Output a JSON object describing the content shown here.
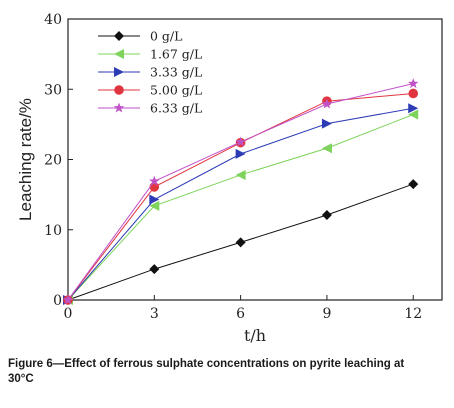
{
  "chart_data": {
    "type": "line",
    "xlabel": "t/h",
    "ylabel": "Leaching rate/%",
    "xlim": [
      0,
      13
    ],
    "ylim": [
      0,
      40
    ],
    "x_ticks": [
      0,
      3,
      6,
      9,
      12
    ],
    "y_ticks": [
      0,
      10,
      20,
      30,
      40
    ],
    "legend_position": "top-left",
    "series": [
      {
        "name": "0 g/L",
        "color": "#111111",
        "marker": "diamond",
        "x": [
          0,
          3,
          6,
          9,
          12
        ],
        "values": [
          0,
          4.4,
          8.2,
          12.1,
          16.5
        ]
      },
      {
        "name": "1.67 g/L",
        "color": "#7dd35b",
        "marker": "triangle-left",
        "x": [
          0,
          3,
          6,
          9,
          12
        ],
        "values": [
          0,
          13.4,
          17.8,
          21.6,
          26.4
        ]
      },
      {
        "name": "3.33 g/L",
        "color": "#2d3bb5",
        "marker": "triangle-right",
        "x": [
          0,
          3,
          6,
          9,
          12
        ],
        "values": [
          0,
          14.3,
          20.8,
          25.1,
          27.3
        ]
      },
      {
        "name": "5.00 g/L",
        "color": "#e0353f",
        "marker": "circle",
        "x": [
          0,
          3,
          6,
          9,
          12
        ],
        "values": [
          0,
          16.1,
          22.4,
          28.3,
          29.4
        ]
      },
      {
        "name": "6.33 g/L",
        "color": "#c052c8",
        "marker": "star",
        "x": [
          0,
          3,
          6,
          9,
          12
        ],
        "values": [
          0,
          16.9,
          22.5,
          27.9,
          30.8
        ]
      }
    ]
  },
  "caption": {
    "line1": "Figure 6—Effect of ferrous sulphate concentrations on pyrite leaching at",
    "line2": "30°C"
  }
}
